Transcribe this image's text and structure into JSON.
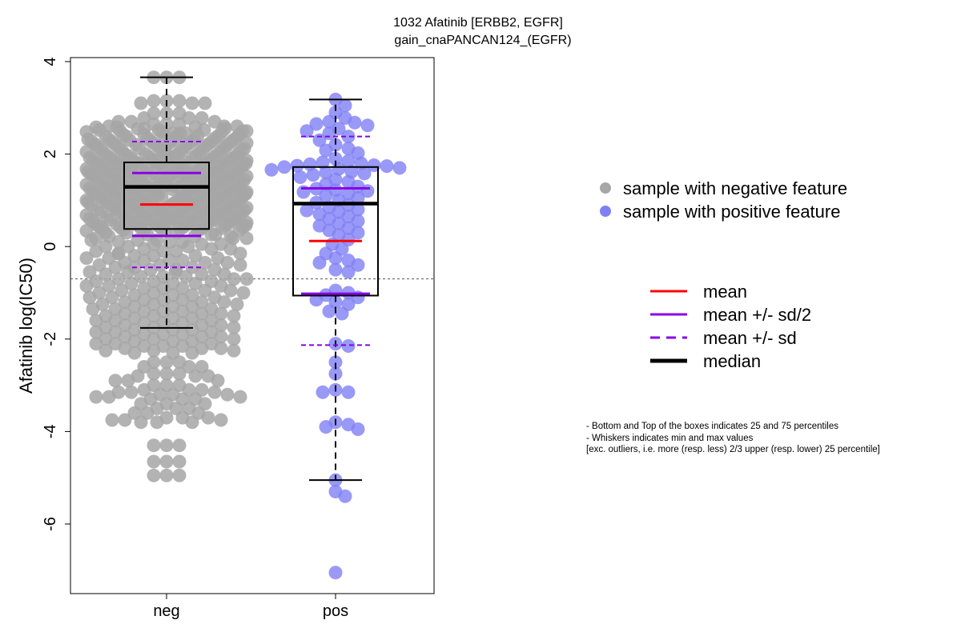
{
  "chart_data": {
    "type": "box-swarm",
    "title_lines": [
      "1032 Afatinib [ERBB2, EGFR]",
      "gain_cnaPANCAN124_(EGFR)"
    ],
    "ylabel": "Afatinib log(IC50)",
    "xlabel": "",
    "ylim": [
      -7.3,
      4.1
    ],
    "yticks": [
      4,
      2,
      0,
      -2,
      -4,
      -6
    ],
    "ytick_labels": [
      "4",
      "2",
      "0",
      "-2",
      "-4",
      "-6"
    ],
    "categories": [
      "neg",
      "pos"
    ],
    "reference_line": -0.7,
    "colors": {
      "neg_points": "#a6a6a6",
      "pos_points": "#8080f5",
      "mean": "#ff0000",
      "sd": "#8a00e6",
      "median": "#000000"
    },
    "groups": [
      {
        "name": "neg",
        "stats": {
          "min": -1.76,
          "q1": 0.38,
          "median": 1.29,
          "q3": 1.82,
          "max": 3.66,
          "mean": 0.91,
          "sd_half_low": 0.23,
          "sd_half_high": 1.59,
          "sd_low": -0.45,
          "sd_high": 2.27
        },
        "points": [
          3.66,
          3.15,
          3.1,
          2.88,
          2.78,
          2.7,
          2.65,
          2.6,
          2.58,
          2.55,
          2.52,
          2.5,
          2.48,
          2.45,
          2.42,
          2.4,
          2.38,
          2.35,
          2.32,
          2.3,
          2.28,
          2.26,
          2.24,
          2.22,
          2.2,
          2.18,
          2.15,
          2.12,
          2.1,
          2.08,
          2.05,
          2.02,
          2.0,
          1.98,
          1.96,
          1.94,
          1.92,
          1.9,
          1.88,
          1.86,
          1.84,
          1.82,
          1.8,
          1.78,
          1.76,
          1.74,
          1.72,
          1.7,
          1.68,
          1.66,
          1.64,
          1.62,
          1.6,
          1.58,
          1.56,
          1.54,
          1.52,
          1.5,
          1.48,
          1.46,
          1.44,
          1.42,
          1.4,
          1.38,
          1.36,
          1.34,
          1.32,
          1.3,
          1.28,
          1.26,
          1.24,
          1.22,
          1.2,
          1.18,
          1.16,
          1.14,
          1.12,
          1.1,
          1.08,
          1.06,
          1.04,
          1.02,
          1.0,
          0.98,
          0.96,
          0.94,
          0.92,
          0.9,
          0.88,
          0.86,
          0.84,
          0.82,
          0.8,
          0.78,
          0.76,
          0.74,
          0.72,
          0.7,
          0.68,
          0.66,
          0.64,
          0.62,
          0.6,
          0.58,
          0.56,
          0.54,
          0.52,
          0.5,
          0.48,
          0.46,
          0.44,
          0.42,
          0.4,
          0.38,
          0.36,
          0.34,
          0.3,
          0.26,
          0.22,
          0.18,
          0.14,
          0.1,
          0.05,
          0.0,
          -0.05,
          -0.1,
          -0.15,
          -0.2,
          -0.25,
          -0.3,
          -0.35,
          -0.4,
          -0.45,
          -0.5,
          -0.55,
          -0.6,
          -0.65,
          -0.7,
          -0.75,
          -0.8,
          -0.85,
          -0.9,
          -0.95,
          -1.0,
          -1.05,
          -1.1,
          -1.15,
          -1.2,
          -1.25,
          -1.3,
          -1.35,
          -1.4,
          -1.45,
          -1.5,
          -1.55,
          -1.6,
          -1.65,
          -1.7,
          -1.75,
          -1.8,
          -1.85,
          -1.9,
          -1.95,
          -2.0,
          -2.05,
          -2.1,
          -2.15,
          -2.2,
          -2.25,
          -2.3,
          -2.5,
          -2.6,
          -2.75,
          -2.8,
          -2.9,
          -3.0,
          -3.1,
          -3.15,
          -3.2,
          -3.25,
          -3.3,
          -3.4,
          -3.5,
          -3.6,
          -3.7,
          -3.75,
          -3.8,
          -4.3,
          -4.65,
          -4.95
        ],
        "point_repeat": 3
      },
      {
        "name": "pos",
        "stats": {
          "min": -5.05,
          "q1": -1.06,
          "median": 0.93,
          "q3": 1.72,
          "max": 3.18,
          "mean": 0.12,
          "sd_half_low": -1.02,
          "sd_half_high": 1.26,
          "sd_low": -2.13,
          "sd_high": 2.38
        },
        "points": [
          3.18,
          3.05,
          2.9,
          2.78,
          2.7,
          2.68,
          2.65,
          2.62,
          2.55,
          2.5,
          2.45,
          2.38,
          2.3,
          2.2,
          2.12,
          2.08,
          2.02,
          1.9,
          1.85,
          1.82,
          1.8,
          1.78,
          1.76,
          1.75,
          1.74,
          1.72,
          1.7,
          1.68,
          1.66,
          1.62,
          1.6,
          1.58,
          1.55,
          1.5,
          1.45,
          1.4,
          1.35,
          1.3,
          1.25,
          1.22,
          1.2,
          1.18,
          1.15,
          1.1,
          1.05,
          1.0,
          0.95,
          0.9,
          0.85,
          0.8,
          0.78,
          0.75,
          0.7,
          0.65,
          0.6,
          0.55,
          0.5,
          0.45,
          0.4,
          0.35,
          0.3,
          0.25,
          0.15,
          0.05,
          -0.05,
          -0.15,
          -0.25,
          -0.3,
          -0.35,
          -0.4,
          -0.5,
          -0.55,
          -0.95,
          -1.0,
          -1.05,
          -1.1,
          -1.15,
          -1.2,
          -1.25,
          -1.4,
          -1.45,
          -2.1,
          -2.15,
          -2.5,
          -2.75,
          -3.1,
          -3.15,
          -3.15,
          -3.8,
          -3.85,
          -3.9,
          -3.95,
          -5.05,
          -5.3,
          -5.4,
          -7.05
        ],
        "point_repeat": 1
      }
    ],
    "legend_points": [
      {
        "label": "sample with negative feature",
        "color": "#a6a6a6"
      },
      {
        "label": "sample with positive feature",
        "color": "#8080f5"
      }
    ],
    "legend_lines": [
      {
        "label": "mean",
        "color": "#ff0000",
        "style": "solid"
      },
      {
        "label": "mean +/- sd/2",
        "color": "#8a00e6",
        "style": "solid"
      },
      {
        "label": "mean +/- sd",
        "color": "#8a00e6",
        "style": "dashed"
      },
      {
        "label": "median",
        "color": "#000000",
        "style": "solid-thick"
      }
    ],
    "notes": [
      "- Bottom and Top of the boxes indicates 25 and 75 percentiles",
      "- Whiskers indicates min and max values",
      "[exc. outliers, i.e. more (resp. less) 2/3 upper (resp. lower) 25 percentile]"
    ]
  }
}
